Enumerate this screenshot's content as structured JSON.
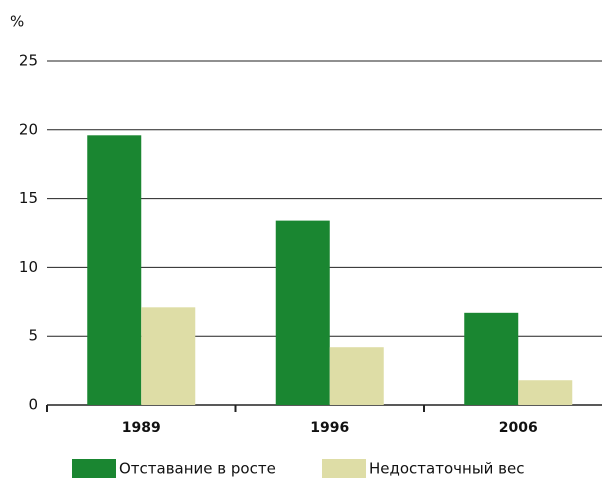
{
  "chart_data": {
    "type": "bar",
    "y_label": "%",
    "categories": [
      "1989",
      "1996",
      "2006"
    ],
    "series": [
      {
        "name": "Отставание в росте",
        "color": "#1a8631",
        "values": [
          19.6,
          13.4,
          6.7
        ]
      },
      {
        "name": "Недостаточный вес",
        "color": "#dedda6",
        "values": [
          7.1,
          4.2,
          1.8
        ]
      }
    ],
    "ylim": [
      0,
      25
    ],
    "yticks": [
      0,
      5,
      10,
      15,
      20,
      25
    ],
    "grid": true
  }
}
